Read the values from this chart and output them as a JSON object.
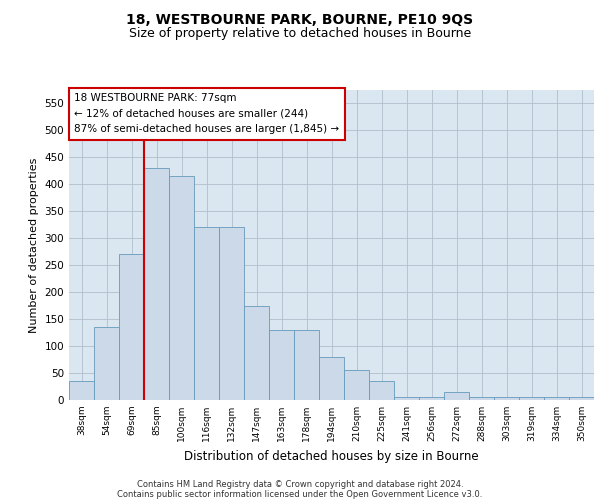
{
  "title1": "18, WESTBOURNE PARK, BOURNE, PE10 9QS",
  "title2": "Size of property relative to detached houses in Bourne",
  "xlabel": "Distribution of detached houses by size in Bourne",
  "ylabel": "Number of detached properties",
  "bar_color": "#ccd9e8",
  "bar_edge_color": "#6699bb",
  "grid_color": "#b0bfcc",
  "background_color": "#dae6f0",
  "annotation_box_color": "#cc0000",
  "vline_color": "#cc0000",
  "annotation_line1": "18 WESTBOURNE PARK: 77sqm",
  "annotation_line2": "← 12% of detached houses are smaller (244)",
  "annotation_line3": "87% of semi-detached houses are larger (1,845) →",
  "footer1": "Contains HM Land Registry data © Crown copyright and database right 2024.",
  "footer2": "Contains public sector information licensed under the Open Government Licence v3.0.",
  "categories": [
    "38sqm",
    "54sqm",
    "69sqm",
    "85sqm",
    "100sqm",
    "116sqm",
    "132sqm",
    "147sqm",
    "163sqm",
    "178sqm",
    "194sqm",
    "210sqm",
    "225sqm",
    "241sqm",
    "256sqm",
    "272sqm",
    "288sqm",
    "303sqm",
    "319sqm",
    "334sqm",
    "350sqm"
  ],
  "values": [
    35,
    135,
    270,
    430,
    415,
    320,
    320,
    175,
    130,
    130,
    80,
    55,
    35,
    5,
    5,
    15,
    5,
    5,
    5,
    5,
    5
  ],
  "ylim": [
    0,
    575
  ],
  "yticks": [
    0,
    50,
    100,
    150,
    200,
    250,
    300,
    350,
    400,
    450,
    500,
    550
  ],
  "vline_x_index": 2.5,
  "title1_fontsize": 10,
  "title2_fontsize": 9
}
